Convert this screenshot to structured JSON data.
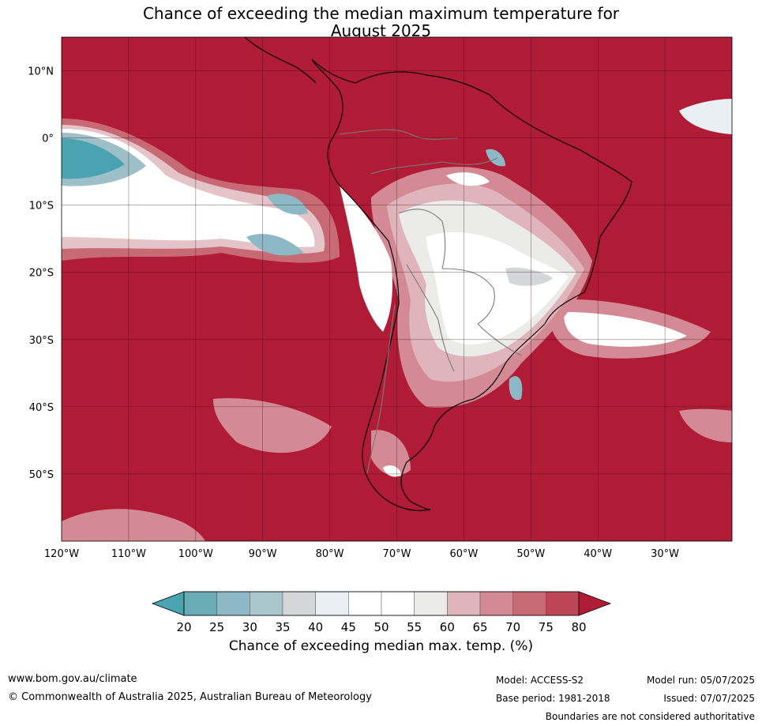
{
  "title": {
    "line1": "Chance of exceeding the median maximum temperature for",
    "line2": "August 2025"
  },
  "map": {
    "lon_range": [
      -120,
      -20
    ],
    "lat_range": [
      -60,
      15
    ],
    "lat_labels": [
      "10°N",
      "0°",
      "10°S",
      "20°S",
      "30°S",
      "40°S",
      "50°S"
    ],
    "lon_labels": [
      "120°W",
      "110°W",
      "100°W",
      "90°W",
      "80°W",
      "70°W",
      "60°W",
      "50°W",
      "40°W",
      "30°W"
    ],
    "grid": true,
    "base_color": "#b01c36"
  },
  "colorbar": {
    "ticks": [
      "20",
      "25",
      "30",
      "35",
      "40",
      "45",
      "50",
      "55",
      "60",
      "65",
      "70",
      "75",
      "80"
    ],
    "colors": [
      "#6aabb8",
      "#8db8c5",
      "#abc6cc",
      "#d3d7d8",
      "#e9eff2",
      "#ffffff",
      "#ffffff",
      "#ebebea",
      "#dfb5bb",
      "#d38a94",
      "#c76a74",
      "#be4654"
    ],
    "under_color": "#4aa3b1",
    "over_color": "#b01c36",
    "label": "Chance of exceeding median max. temp. (%)"
  },
  "footer": {
    "website": "www.bom.gov.au/climate",
    "copyright": "© Commonwealth of Australia 2025, Australian Bureau of Meteorology",
    "model": "Model: ACCESS-S2",
    "base_period": "Base period: 1981-2018",
    "model_run": "Model run: 05/07/2025",
    "issued": "Issued: 07/07/2025",
    "disclaimer": "Boundaries are not considered authoritative"
  }
}
